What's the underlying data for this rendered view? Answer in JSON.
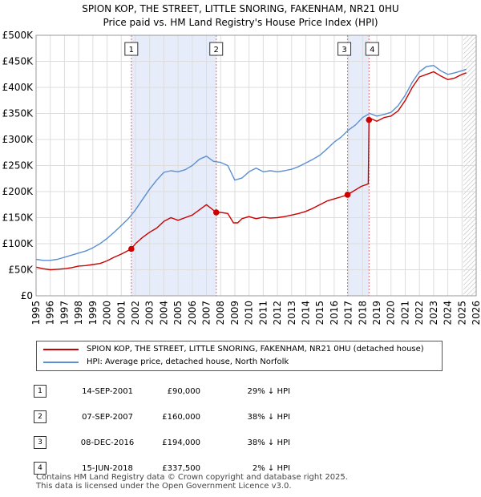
{
  "chart_data": {
    "type": "line",
    "title": "SPION KOP, THE STREET, LITTLE SNORING, FAKENHAM, NR21 0HU",
    "subtitle": "Price paid vs. HM Land Registry's House Price Index (HPI)",
    "xlabel": "",
    "ylabel": "",
    "xlim": [
      1995,
      2026
    ],
    "ylim": [
      0,
      500000
    ],
    "x_ticks": [
      "1995",
      "1996",
      "1997",
      "1998",
      "1999",
      "2000",
      "2001",
      "2002",
      "2003",
      "2004",
      "2005",
      "2006",
      "2007",
      "2008",
      "2009",
      "2010",
      "2011",
      "2012",
      "2013",
      "2014",
      "2015",
      "2016",
      "2017",
      "2018",
      "2019",
      "2020",
      "2021",
      "2022",
      "2023",
      "2024",
      "2025",
      "2026"
    ],
    "y_ticks": [
      {
        "value": 0,
        "label": "£0"
      },
      {
        "value": 50000,
        "label": "£50K"
      },
      {
        "value": 100000,
        "label": "£100K"
      },
      {
        "value": 150000,
        "label": "£150K"
      },
      {
        "value": 200000,
        "label": "£200K"
      },
      {
        "value": 250000,
        "label": "£250K"
      },
      {
        "value": 300000,
        "label": "£300K"
      },
      {
        "value": 350000,
        "label": "£350K"
      },
      {
        "value": 400000,
        "label": "£400K"
      },
      {
        "value": 450000,
        "label": "£450K"
      },
      {
        "value": 500000,
        "label": "£500K"
      }
    ],
    "grid": true,
    "future_hatch_from": 2025.1,
    "series": [
      {
        "name": "SPION KOP, THE STREET, LITTLE SNORING, FAKENHAM, NR21 0HU (detached house)",
        "color": "#cc0000",
        "x": [
          1995.0,
          1995.5,
          1996.0,
          1996.5,
          1997.0,
          1997.5,
          1998.0,
          1998.5,
          1999.0,
          1999.5,
          2000.0,
          2000.5,
          2001.0,
          2001.71,
          2002.0,
          2002.5,
          2003.0,
          2003.5,
          2004.0,
          2004.5,
          2005.0,
          2005.5,
          2006.0,
          2006.5,
          2007.0,
          2007.69,
          2008.0,
          2008.5,
          2008.9,
          2009.2,
          2009.5,
          2010.0,
          2010.5,
          2011.0,
          2011.5,
          2012.0,
          2012.5,
          2013.0,
          2013.5,
          2014.0,
          2014.5,
          2015.0,
          2015.5,
          2016.0,
          2016.5,
          2016.94,
          2017.3,
          2017.6,
          2017.9,
          2018.2,
          2018.4,
          2018.45,
          2018.6,
          2019.0,
          2019.5,
          2020.0,
          2020.5,
          2021.0,
          2021.5,
          2022.0,
          2022.5,
          2023.0,
          2023.5,
          2024.0,
          2024.5,
          2025.0,
          2025.3
        ],
        "values": [
          55000,
          52000,
          50000,
          51000,
          52000,
          54000,
          57000,
          58000,
          60000,
          62000,
          67000,
          74000,
          80000,
          90000,
          100000,
          112000,
          122000,
          130000,
          143000,
          150000,
          145000,
          150000,
          155000,
          165000,
          175000,
          160000,
          160000,
          158000,
          140000,
          140000,
          148000,
          152000,
          148000,
          151000,
          149000,
          150000,
          152000,
          155000,
          158000,
          162000,
          168000,
          175000,
          182000,
          186000,
          190000,
          194000,
          200000,
          205000,
          210000,
          213000,
          215000,
          337500,
          340000,
          335000,
          342000,
          345000,
          355000,
          375000,
          400000,
          420000,
          425000,
          430000,
          422000,
          415000,
          418000,
          425000,
          428000
        ]
      },
      {
        "name": "HPI: Average price, detached house, North Norfolk",
        "color": "#5b8fd1",
        "x": [
          1995.0,
          1995.5,
          1996.0,
          1996.5,
          1997.0,
          1997.5,
          1998.0,
          1998.5,
          1999.0,
          1999.5,
          2000.0,
          2000.5,
          2001.0,
          2001.5,
          2002.0,
          2002.5,
          2003.0,
          2003.5,
          2004.0,
          2004.5,
          2005.0,
          2005.5,
          2006.0,
          2006.5,
          2007.0,
          2007.5,
          2008.0,
          2008.5,
          2009.0,
          2009.5,
          2010.0,
          2010.5,
          2011.0,
          2011.5,
          2012.0,
          2012.5,
          2013.0,
          2013.5,
          2014.0,
          2014.5,
          2015.0,
          2015.5,
          2016.0,
          2016.5,
          2017.0,
          2017.5,
          2018.0,
          2018.5,
          2019.0,
          2019.5,
          2020.0,
          2020.5,
          2021.0,
          2021.5,
          2022.0,
          2022.5,
          2023.0,
          2023.5,
          2024.0,
          2024.5,
          2025.0,
          2025.3
        ],
        "values": [
          70000,
          68000,
          68000,
          70000,
          74000,
          78000,
          82000,
          86000,
          92000,
          100000,
          110000,
          122000,
          135000,
          148000,
          165000,
          185000,
          205000,
          222000,
          237000,
          240000,
          238000,
          242000,
          250000,
          262000,
          268000,
          258000,
          256000,
          250000,
          222000,
          226000,
          238000,
          245000,
          238000,
          240000,
          238000,
          240000,
          243000,
          248000,
          255000,
          262000,
          270000,
          282000,
          295000,
          305000,
          318000,
          328000,
          342000,
          350000,
          345000,
          348000,
          352000,
          365000,
          385000,
          410000,
          430000,
          440000,
          442000,
          432000,
          425000,
          428000,
          432000,
          435000
        ]
      }
    ],
    "sales": [
      {
        "marker": "1",
        "x": 2001.71,
        "value": 90000
      },
      {
        "marker": "2",
        "x": 2007.69,
        "value": 160000
      },
      {
        "marker": "3",
        "x": 2016.94,
        "value": 194000
      },
      {
        "marker": "4",
        "x": 2018.45,
        "value": 337500
      }
    ],
    "shaded_ranges": [
      [
        2001.71,
        2007.69
      ],
      [
        2016.94,
        2018.45
      ]
    ]
  },
  "legend": {
    "property_label": "SPION KOP, THE STREET, LITTLE SNORING, FAKENHAM, NR21 0HU (detached house)",
    "hpi_label": "HPI: Average price, detached house, North Norfolk"
  },
  "transactions": [
    {
      "num": "1",
      "date": "14-SEP-2001",
      "price": "£90,000",
      "hpi": "29% ↓ HPI"
    },
    {
      "num": "2",
      "date": "07-SEP-2007",
      "price": "£160,000",
      "hpi": "38% ↓ HPI"
    },
    {
      "num": "3",
      "date": "08-DEC-2016",
      "price": "£194,000",
      "hpi": "38% ↓ HPI"
    },
    {
      "num": "4",
      "date": "15-JUN-2018",
      "price": "£337,500",
      "hpi": "2% ↓ HPI"
    }
  ],
  "footer": {
    "line1": "Contains HM Land Registry data © Crown copyright and database right 2025.",
    "line2": "This data is licensed under the Open Government Licence v3.0."
  }
}
